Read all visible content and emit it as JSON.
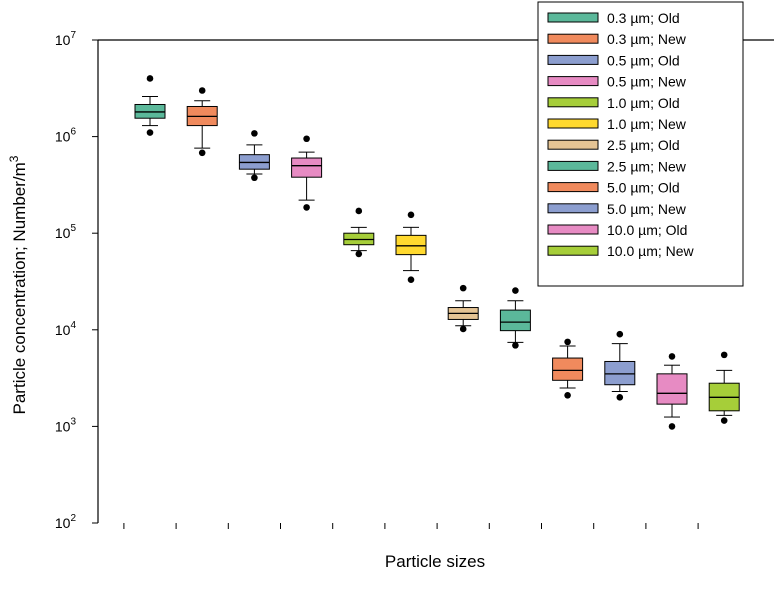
{
  "chart_data": {
    "type": "box",
    "title": "",
    "xlabel": "Particle sizes",
    "ylabel": {
      "prefix": "Particle concentration; Number/m",
      "superscript": "3"
    },
    "y_scale": "log",
    "ylim": [
      100,
      10000000
    ],
    "y_ticks": [
      {
        "value": 100,
        "base": "10",
        "exp": "2"
      },
      {
        "value": 1000,
        "base": "10",
        "exp": "3"
      },
      {
        "value": 10000,
        "base": "10",
        "exp": "4"
      },
      {
        "value": 100000,
        "base": "10",
        "exp": "5"
      },
      {
        "value": 1000000,
        "base": "10",
        "exp": "6"
      },
      {
        "value": 10000000,
        "base": "10",
        "exp": "7"
      }
    ],
    "grid": false,
    "legend_position": "top-right",
    "series": [
      {
        "name": "0.3 µm; Old",
        "color": "#5BB89A",
        "whisker_low": 1300000,
        "q1": 1550000,
        "median": 1800000,
        "q3": 2150000,
        "whisker_high": 2600000,
        "outliers": [
          4000000,
          1100000
        ]
      },
      {
        "name": "0.3 µm; New",
        "color": "#F08A5D",
        "whisker_low": 760000,
        "q1": 1300000,
        "median": 1620000,
        "q3": 2050000,
        "whisker_high": 2350000,
        "outliers": [
          3000000,
          680000
        ]
      },
      {
        "name": "0.5 µm; Old",
        "color": "#8C9ECF",
        "whisker_low": 410000,
        "q1": 460000,
        "median": 540000,
        "q3": 650000,
        "whisker_high": 820000,
        "outliers": [
          1080000,
          375000
        ]
      },
      {
        "name": "0.5 µm; New",
        "color": "#E78BC3",
        "whisker_low": 220000,
        "q1": 380000,
        "median": 500000,
        "q3": 600000,
        "whisker_high": 690000,
        "outliers": [
          950000,
          185000
        ]
      },
      {
        "name": "1.0 µm; Old",
        "color": "#A6CE39",
        "whisker_low": 66000,
        "q1": 76000,
        "median": 86000,
        "q3": 100000,
        "whisker_high": 115000,
        "outliers": [
          170000,
          61000
        ]
      },
      {
        "name": "1.0 µm; New",
        "color": "#FFD92F",
        "whisker_low": 41000,
        "q1": 60000,
        "median": 74000,
        "q3": 95000,
        "whisker_high": 115000,
        "outliers": [
          155000,
          33000
        ]
      },
      {
        "name": "2.5 µm; Old",
        "color": "#E5C494",
        "whisker_low": 11000,
        "q1": 12800,
        "median": 14800,
        "q3": 17000,
        "whisker_high": 20000,
        "outliers": [
          27000,
          10200
        ]
      },
      {
        "name": "2.5 µm; New",
        "color": "#5BB89A",
        "whisker_low": 7400,
        "q1": 9800,
        "median": 12000,
        "q3": 16000,
        "whisker_high": 20000,
        "outliers": [
          25500,
          6900
        ]
      },
      {
        "name": "5.0 µm; Old",
        "color": "#F08A5D",
        "whisker_low": 2500,
        "q1": 3000,
        "median": 3800,
        "q3": 5100,
        "whisker_high": 6800,
        "outliers": [
          7500,
          2100
        ]
      },
      {
        "name": "5.0 µm; New",
        "color": "#8C9ECF",
        "whisker_low": 2300,
        "q1": 2700,
        "median": 3500,
        "q3": 4700,
        "whisker_high": 7200,
        "outliers": [
          9000,
          2000
        ]
      },
      {
        "name": "10.0 µm; Old",
        "color": "#E78BC3",
        "whisker_low": 1250,
        "q1": 1700,
        "median": 2200,
        "q3": 3500,
        "whisker_high": 4300,
        "outliers": [
          5300,
          1000
        ]
      },
      {
        "name": "10.0 µm; New",
        "color": "#A6CE39",
        "whisker_low": 1300,
        "q1": 1450,
        "median": 2000,
        "q3": 2800,
        "whisker_high": 3800,
        "outliers": [
          5500,
          1150
        ]
      }
    ]
  }
}
